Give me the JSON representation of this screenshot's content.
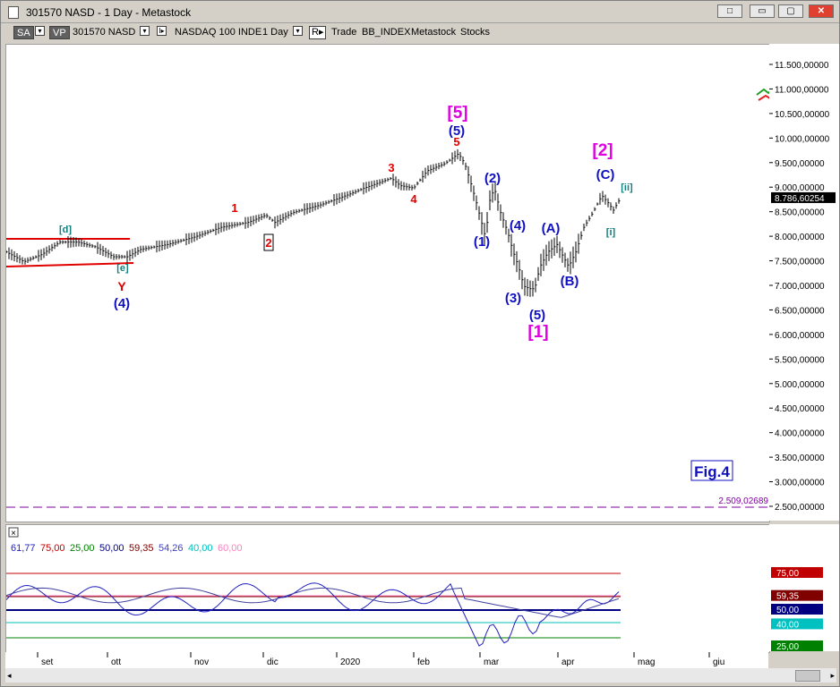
{
  "window": {
    "title": "301570 NASD - 1 Day - Metastock",
    "buttons": {
      "restore": "□",
      "minimize": "▭",
      "maximize": "▢",
      "close": "✕"
    }
  },
  "toolbar": {
    "sa_label": "SA",
    "vp_label": "VP",
    "symbol": "301570 NASD",
    "security_name": "NASDAQ 100 INDE",
    "period": "1 Day",
    "r_label": "R",
    "trade_label": "Trade",
    "index_label": "BB_INDEX",
    "source_label": "Metastock",
    "stocks_label": "Stocks"
  },
  "price_axis": {
    "labels": [
      "11.500,00000",
      "11.000,00000",
      "10.500,00000",
      "10.000,00000",
      "9.500,00000",
      "9.000,00000",
      "8.786,60254",
      "8.500,00000",
      "8.000,00000",
      "7.500,00000",
      "7.000,00000",
      "6.500,00000",
      "6.000,00000",
      "5.500,00000",
      "5.000,00000",
      "4.500,00000",
      "4.000,00000",
      "3.500,00000",
      "3.000,00000",
      "2.500,00000"
    ],
    "current_value": "8.786,60254",
    "line_value": "2.509,02689"
  },
  "wave_labels": {
    "d": "[d]",
    "e": "[e]",
    "Y": "Y",
    "w4": "(4)",
    "r1": "1",
    "r2": "2",
    "r3": "3",
    "r4": "4",
    "r5": "5",
    "top5": "[5]",
    "top_sub5": "(5)",
    "w1": "(1)",
    "w2": "(2)",
    "w3": "(3)",
    "w4b": "(4)",
    "w5": "(5)",
    "bottom1": "[1]",
    "A": "(A)",
    "B": "(B)",
    "C": "(C)",
    "top2": "[2]",
    "i": "[i]",
    "ii": "[ii]",
    "fig": "Fig.4"
  },
  "indicator": {
    "close_icon": "×",
    "values": [
      "61,77",
      "75,00",
      "25,00",
      "50,00",
      "59,35",
      "54,26",
      "40,00",
      "60,00"
    ],
    "colors": [
      "#2020c0",
      "#c00000",
      "#008000",
      "#000080",
      "#800000",
      "#4040c0",
      "#00c0c0",
      "#ff80c0"
    ],
    "axis_labels": [
      "75,00",
      "59,35",
      "50,00",
      "40,00",
      "25,00"
    ]
  },
  "date_axis": {
    "labels": [
      "set",
      "ott",
      "nov",
      "dic",
      "2020",
      "feb",
      "mar",
      "apr",
      "mag",
      "giu"
    ]
  },
  "colors": {
    "wave_red": "#e00000",
    "wave_blue": "#1010c0",
    "wave_magenta": "#e000e0",
    "wave_teal": "#108080"
  }
}
